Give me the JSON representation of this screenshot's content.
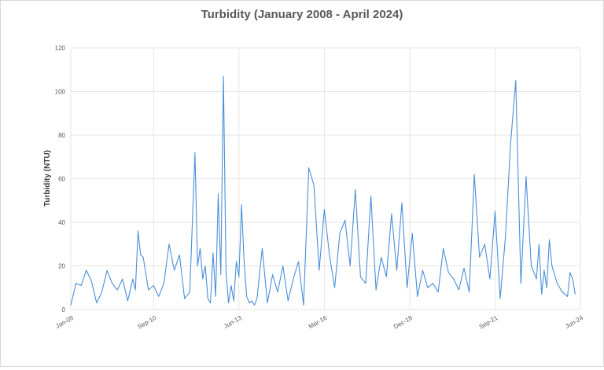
{
  "chart_data": {
    "type": "line",
    "title": "Turbidity (January 2008 - April 2024)",
    "xlabel": "",
    "ylabel": "Turbidity (NTU)",
    "ylim": [
      0,
      120
    ],
    "yticks": [
      0,
      20,
      40,
      60,
      80,
      100,
      120
    ],
    "xlim": [
      "2008-01",
      "2024-06"
    ],
    "xticks": [
      {
        "label": "Jan-08",
        "date": "2008-01"
      },
      {
        "label": "Sep-10",
        "date": "2010-09"
      },
      {
        "label": "Jun-13",
        "date": "2013-06"
      },
      {
        "label": "Mar-16",
        "date": "2016-03"
      },
      {
        "label": "Dec-18",
        "date": "2018-12"
      },
      {
        "label": "Sep-21",
        "date": "2021-09"
      },
      {
        "label": "Jun-24",
        "date": "2024-06"
      }
    ],
    "grid": true,
    "legend": "none",
    "colors": {
      "series": "#4a90d9",
      "grid": "#e6e6e6",
      "text": "#595959"
    },
    "series": [
      {
        "x": [
          "2008-01",
          "2008-03",
          "2008-05",
          "2008-07",
          "2008-09",
          "2008-11",
          "2009-01",
          "2009-03",
          "2009-05",
          "2009-07",
          "2009-09",
          "2009-11",
          "2010-01",
          "2010-02",
          "2010-03",
          "2010-04",
          "2010-05",
          "2010-07",
          "2010-09",
          "2010-11",
          "2011-01",
          "2011-03",
          "2011-05",
          "2011-07",
          "2011-09",
          "2011-11",
          "2012-01",
          "2012-02",
          "2012-03",
          "2012-04",
          "2012-05",
          "2012-06",
          "2012-07",
          "2012-08",
          "2012-09",
          "2012-10",
          "2012-11",
          "2012-12",
          "2013-01",
          "2013-02",
          "2013-03",
          "2013-04",
          "2013-05",
          "2013-06",
          "2013-07",
          "2013-08",
          "2013-09",
          "2013-10",
          "2013-11",
          "2013-12",
          "2014-01",
          "2014-03",
          "2014-05",
          "2014-07",
          "2014-09",
          "2014-11",
          "2015-01",
          "2015-03",
          "2015-05",
          "2015-07",
          "2015-09",
          "2015-11",
          "2016-01",
          "2016-03",
          "2016-05",
          "2016-07",
          "2016-09",
          "2016-11",
          "2017-01",
          "2017-03",
          "2017-05",
          "2017-07",
          "2017-09",
          "2017-11",
          "2018-01",
          "2018-03",
          "2018-05",
          "2018-07",
          "2018-09",
          "2018-11",
          "2019-01",
          "2019-03",
          "2019-05",
          "2019-07",
          "2019-09",
          "2019-11",
          "2020-01",
          "2020-03",
          "2020-05",
          "2020-07",
          "2020-09",
          "2020-11",
          "2021-01",
          "2021-03",
          "2021-05",
          "2021-07",
          "2021-09",
          "2021-11",
          "2022-01",
          "2022-03",
          "2022-05",
          "2022-07",
          "2022-09",
          "2022-11",
          "2023-01",
          "2023-02",
          "2023-03",
          "2023-04",
          "2023-05",
          "2023-06",
          "2023-07",
          "2023-09",
          "2023-11",
          "2024-01",
          "2024-02",
          "2024-03",
          "2024-04"
        ],
        "values": [
          2,
          12,
          11,
          18,
          13,
          3,
          8,
          18,
          12,
          9,
          14,
          4,
          14,
          9,
          36,
          25,
          24,
          9,
          11,
          6,
          12,
          30,
          18,
          25,
          5,
          8,
          72,
          20,
          28,
          14,
          20,
          5,
          3,
          26,
          6,
          53,
          16,
          107,
          17,
          3,
          11,
          4,
          22,
          15,
          48,
          22,
          6,
          3,
          4,
          2,
          5,
          28,
          3,
          16,
          8,
          20,
          4,
          14,
          22,
          2,
          65,
          57,
          18,
          46,
          25,
          10,
          35,
          41,
          20,
          55,
          15,
          12,
          52,
          9,
          24,
          15,
          44,
          18,
          49,
          10,
          35,
          6,
          18,
          10,
          12,
          8,
          28,
          17,
          14,
          9,
          19,
          8,
          62,
          24,
          30,
          14,
          45,
          5,
          33,
          76,
          105,
          12,
          61,
          20,
          14,
          30,
          7,
          18,
          10,
          32,
          20,
          12,
          8,
          6,
          17,
          14,
          7
        ]
      }
    ]
  }
}
